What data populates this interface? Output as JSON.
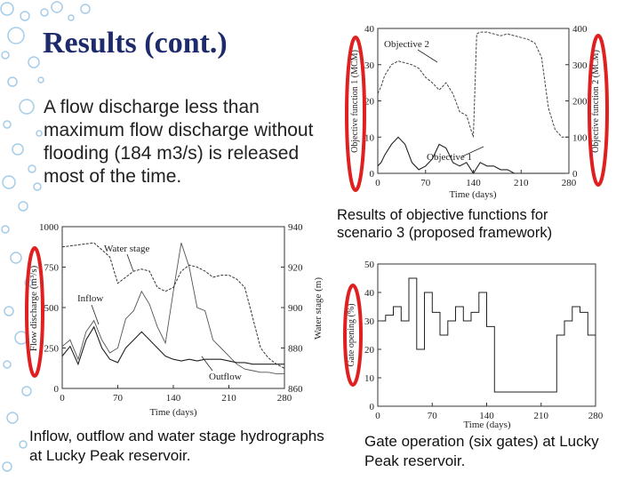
{
  "slide": {
    "title": "Results (cont.)",
    "body": "A flow discharge less than maximum flow discharge without flooding (184 m3/s) is released most of the time.",
    "caption_objectives": "Results of objective functions for scenario 3 (proposed framework)",
    "caption_hydrographs": "Inflow, outflow and water stage hydrographs at Lucky Peak reservoir.",
    "caption_gates": "Gate operation (six gates) at Lucky Peak reservoir."
  },
  "theme": {
    "title_color": "#1d2a6b",
    "highlight_color": "#e02020",
    "bubble_color": "#7fb6e0"
  },
  "chart_data": [
    {
      "type": "line",
      "xlabel": "Time (days)",
      "ylabel": "Objective function 1 (MCM)",
      "y2label": "Objective function 2 (MCM)",
      "xticks": [
        "0",
        "70",
        "140",
        "210",
        "280"
      ],
      "yticks": [
        "0",
        "10",
        "20",
        "30",
        "40"
      ],
      "y2ticks": [
        "0",
        "100",
        "200",
        "300",
        "400"
      ],
      "xlim": [
        0,
        280
      ],
      "ylim": [
        0,
        40
      ],
      "y2lim": [
        0,
        400
      ],
      "annotations": [
        "Objective 2",
        "Objective 1"
      ],
      "series": [
        {
          "name": "Objective 1",
          "axis": "left",
          "x": [
            0,
            5,
            10,
            20,
            30,
            40,
            50,
            60,
            70,
            80,
            90,
            100,
            110,
            120,
            130,
            140,
            150,
            160,
            170,
            180,
            190,
            200,
            210,
            220,
            230,
            240,
            250,
            260,
            270,
            280
          ],
          "values": [
            2,
            3,
            5,
            8,
            10,
            8,
            3,
            1,
            2,
            4,
            8,
            7,
            3,
            2,
            3,
            0,
            3,
            2,
            2,
            1,
            1,
            0,
            0,
            0,
            0,
            0,
            0,
            0,
            0,
            0
          ]
        },
        {
          "name": "Objective 2",
          "axis": "right",
          "x": [
            0,
            5,
            10,
            20,
            30,
            40,
            50,
            60,
            70,
            80,
            90,
            100,
            110,
            120,
            130,
            140,
            145,
            150,
            160,
            170,
            180,
            190,
            200,
            210,
            220,
            230,
            240,
            250,
            260,
            270,
            280
          ],
          "values": [
            220,
            240,
            270,
            300,
            310,
            305,
            300,
            290,
            265,
            250,
            230,
            250,
            220,
            170,
            160,
            100,
            385,
            390,
            390,
            385,
            380,
            385,
            380,
            375,
            370,
            360,
            320,
            180,
            120,
            100,
            100
          ]
        }
      ]
    },
    {
      "type": "line",
      "xlabel": "Time (days)",
      "ylabel": "Flow discharge (m³/s)",
      "y2label": "Water stage (m)",
      "xticks": [
        "0",
        "70",
        "140",
        "210",
        "280"
      ],
      "yticks": [
        "0",
        "250",
        "500",
        "750",
        "1000"
      ],
      "y2ticks": [
        "860",
        "880",
        "900",
        "920",
        "940"
      ],
      "xlim": [
        0,
        280
      ],
      "ylim": [
        0,
        1000
      ],
      "y2lim": [
        860,
        940
      ],
      "annotations": [
        "Water stage",
        "Inflow",
        "Outflow"
      ],
      "series": [
        {
          "name": "Inflow",
          "axis": "left",
          "x": [
            0,
            10,
            20,
            30,
            40,
            50,
            60,
            70,
            80,
            90,
            100,
            110,
            120,
            130,
            140,
            150,
            160,
            170,
            180,
            190,
            200,
            210,
            220,
            230,
            240,
            250,
            260,
            270,
            280
          ],
          "values": [
            260,
            300,
            180,
            350,
            420,
            300,
            220,
            250,
            430,
            480,
            600,
            520,
            380,
            280,
            600,
            900,
            750,
            500,
            480,
            300,
            250,
            200,
            150,
            120,
            110,
            100,
            100,
            90,
            90
          ]
        },
        {
          "name": "Outflow",
          "axis": "left",
          "x": [
            0,
            10,
            20,
            30,
            40,
            50,
            60,
            70,
            80,
            90,
            100,
            110,
            120,
            130,
            140,
            150,
            160,
            170,
            180,
            190,
            200,
            210,
            220,
            230,
            240,
            250,
            260,
            270,
            280
          ],
          "values": [
            200,
            260,
            150,
            300,
            380,
            250,
            180,
            160,
            250,
            300,
            350,
            300,
            250,
            200,
            180,
            170,
            180,
            170,
            180,
            180,
            180,
            170,
            160,
            160,
            150,
            150,
            150,
            150,
            150
          ]
        },
        {
          "name": "Water stage",
          "axis": "right",
          "x": [
            0,
            20,
            40,
            60,
            70,
            80,
            90,
            100,
            110,
            120,
            130,
            140,
            150,
            160,
            170,
            180,
            190,
            200,
            210,
            220,
            230,
            240,
            250,
            260,
            270,
            280
          ],
          "values": [
            930,
            931,
            932,
            925,
            912,
            915,
            918,
            919,
            918,
            910,
            908,
            910,
            918,
            921,
            920,
            918,
            915,
            916,
            916,
            914,
            910,
            895,
            880,
            875,
            872,
            870
          ]
        }
      ]
    },
    {
      "type": "line",
      "xlabel": "Time (days)",
      "ylabel": "Gate opening (%)",
      "xticks": [
        "0",
        "70",
        "140",
        "210",
        "280"
      ],
      "yticks": [
        "0",
        "10",
        "20",
        "30",
        "40",
        "50"
      ],
      "xlim": [
        0,
        280
      ],
      "ylim": [
        0,
        50
      ],
      "series": [
        {
          "name": "Gate opening",
          "x": [
            0,
            10,
            20,
            30,
            40,
            50,
            60,
            70,
            80,
            90,
            100,
            110,
            120,
            130,
            140,
            150,
            160,
            170,
            180,
            190,
            200,
            210,
            220,
            230,
            240,
            250,
            260,
            270,
            280
          ],
          "values": [
            30,
            32,
            35,
            30,
            45,
            20,
            40,
            33,
            25,
            30,
            35,
            30,
            33,
            40,
            28,
            5,
            5,
            5,
            5,
            5,
            5,
            5,
            5,
            25,
            30,
            35,
            33,
            25,
            25
          ]
        }
      ]
    }
  ]
}
